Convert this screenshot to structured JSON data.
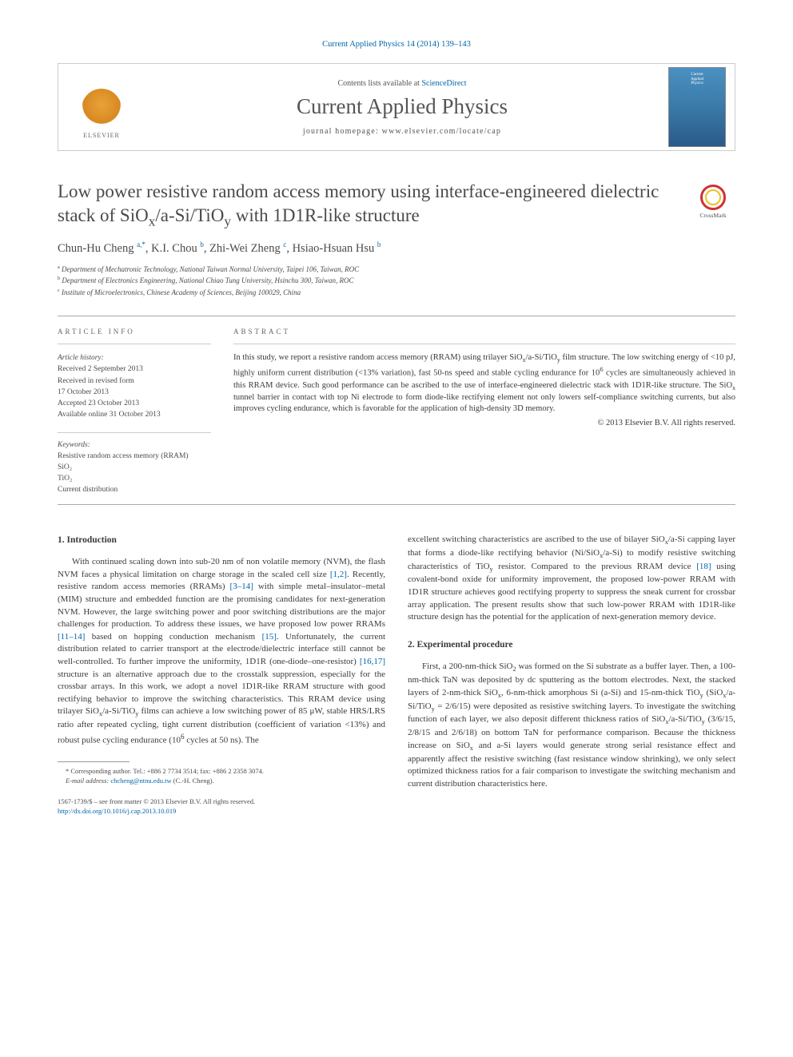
{
  "citation": "Current Applied Physics 14 (2014) 139–143",
  "header": {
    "contents_prefix": "Contents lists available at ",
    "contents_link": "ScienceDirect",
    "journal": "Current Applied Physics",
    "homepage_prefix": "journal homepage: ",
    "homepage_url": "www.elsevier.com/locate/cap",
    "publisher_name": "ELSEVIER",
    "cover_label_1": "Current",
    "cover_label_2": "Applied",
    "cover_label_3": "Physics"
  },
  "crossmark": "CrossMark",
  "title_html": "Low power resistive random access memory using interface-engineered dielectric stack of SiO<sub>x</sub>/a-Si/TiO<sub>y</sub> with 1D1R-like structure",
  "authors_html": "Chun-Hu Cheng <sup>a,*</sup>, K.I. Chou <sup>b</sup>, Zhi-Wei Zheng <sup>c</sup>, Hsiao-Hsuan Hsu <sup>b</sup>",
  "affiliations": [
    {
      "sup": "a",
      "text": "Department of Mechatronic Technology, National Taiwan Normal University, Taipei 106, Taiwan, ROC"
    },
    {
      "sup": "b",
      "text": "Department of Electronics Engineering, National Chiao Tung University, Hsinchu 300, Taiwan, ROC"
    },
    {
      "sup": "c",
      "text": "Institute of Microelectronics, Chinese Academy of Sciences, Beijing 100029, China"
    }
  ],
  "info": {
    "label": "ARTICLE INFO",
    "history_head": "Article history:",
    "history": [
      "Received 2 September 2013",
      "Received in revised form",
      "17 October 2013",
      "Accepted 23 October 2013",
      "Available online 31 October 2013"
    ],
    "keywords_head": "Keywords:",
    "keywords": [
      "Resistive random access memory (RRAM)",
      "SiO₂",
      "TiO₂",
      "Current distribution"
    ]
  },
  "abstract": {
    "label": "ABSTRACT",
    "text_html": "In this study, we report a resistive random access memory (RRAM) using trilayer SiO<sub>x</sub>/a-Si/TiO<sub>y</sub> film structure. The low switching energy of &lt;10 pJ, highly uniform current distribution (&lt;13% variation), fast 50-ns speed and stable cycling endurance for 10<sup>6</sup> cycles are simultaneously achieved in this RRAM device. Such good performance can be ascribed to the use of interface-engineered dielectric stack with 1D1R-like structure. The SiO<sub>x</sub> tunnel barrier in contact with top Ni electrode to form diode-like rectifying element not only lowers self-compliance switching currents, but also improves cycling endurance, which is favorable for the application of high-density 3D memory.",
    "copyright": "© 2013 Elsevier B.V. All rights reserved."
  },
  "body": {
    "sec1_head": "1. Introduction",
    "sec1_html": "With continued scaling down into sub-20 nm of non volatile memory (NVM), the flash NVM faces a physical limitation on charge storage in the scaled cell size <a class='ref'>[1,2]</a>. Recently, resistive random access memories (RRAMs) <a class='ref'>[3–14]</a> with simple metal–insulator–metal (MIM) structure and embedded function are the promising candidates for next-generation NVM. However, the large switching power and poor switching distributions are the major challenges for production. To address these issues, we have proposed low power RRAMs <a class='ref'>[11–14]</a> based on hopping conduction mechanism <a class='ref'>[15]</a>. Unfortunately, the current distribution related to carrier transport at the electrode/dielectric interface still cannot be well-controlled. To further improve the uniformity, 1D1R (one-diode–one-resistor) <a class='ref'>[16,17]</a> structure is an alternative approach due to the crosstalk suppression, especially for the crossbar arrays. In this work, we adopt a novel 1D1R-like RRAM structure with good rectifying behavior to improve the switching characteristics. This RRAM device using trilayer SiO<sub>x</sub>/a-Si/TiO<sub>y</sub> films can achieve a low switching power of 85 μW, stable HRS/LRS ratio after repeated cycling, tight current distribution (coefficient of variation &lt;13%) and robust pulse cycling endurance (10<sup>6</sup> cycles at 50 ns). The",
    "col2_para1_html": "excellent switching characteristics are ascribed to the use of bilayer SiO<sub>x</sub>/a-Si capping layer that forms a diode-like rectifying behavior (Ni/SiO<sub>x</sub>/a-Si) to modify resistive switching characteristics of TiO<sub>y</sub> resistor. Compared to the previous RRAM device <a class='ref'>[18]</a> using covalent-bond oxide for uniformity improvement, the proposed low-power RRAM with 1D1R structure achieves good rectifying property to suppress the sneak current for crossbar array application. The present results show that such low-power RRAM with 1D1R-like structure design has the potential for the application of next-generation memory device.",
    "sec2_head": "2. Experimental procedure",
    "sec2_html": "First, a 200-nm-thick SiO<sub>2</sub> was formed on the Si substrate as a buffer layer. Then, a 100-nm-thick TaN was deposited by dc sputtering as the bottom electrodes. Next, the stacked layers of 2-nm-thick SiO<sub>x</sub>, 6-nm-thick amorphous Si (a-Si) and 15-nm-thick TiO<sub>y</sub> (SiO<sub>x</sub>/a-Si/TiO<sub>y</sub> = 2/6/15) were deposited as resistive switching layers. To investigate the switching function of each layer, we also deposit different thickness ratios of SiO<sub>x</sub>/a-Si/TiO<sub>y</sub> (3/6/15, 2/8/15 and 2/6/18) on bottom TaN for performance comparison. Because the thickness increase on SiO<sub>x</sub> and a-Si layers would generate strong serial resistance effect and apparently affect the resistive switching (fast resistance window shrinking), we only select optimized thickness ratios for a fair comparison to investigate the switching mechanism and current distribution characteristics here."
  },
  "footnotes": {
    "corresponding": "* Corresponding author. Tel.: +886 2 7734 3514; fax: +886 2 2358 3074.",
    "email_label": "E-mail address: ",
    "email": "chcheng@ntnu.edu.tw",
    "email_suffix": " (C.-H. Cheng)."
  },
  "bottom": {
    "line1": "1567-1739/$ – see front matter © 2013 Elsevier B.V. All rights reserved.",
    "doi": "http://dx.doi.org/10.1016/j.cap.2013.10.019"
  },
  "colors": {
    "link": "#0066aa",
    "text": "#3a3a3a",
    "muted": "#666666",
    "border": "#cccccc"
  }
}
